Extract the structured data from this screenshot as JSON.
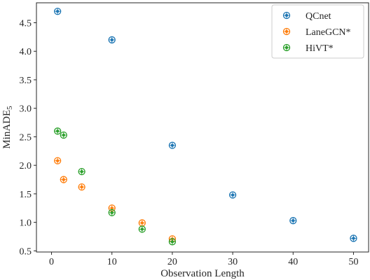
{
  "chart_data": {
    "type": "scatter",
    "xlabel": "Observation Length",
    "ylabel_base": "MinADE",
    "ylabel_sub": "5",
    "xlim": [
      -2.5,
      52.5
    ],
    "ylim": [
      0.48,
      4.85
    ],
    "xticks": [
      0,
      10,
      20,
      30,
      40,
      50
    ],
    "yticks": [
      0.5,
      1.0,
      1.5,
      2.0,
      2.5,
      3.0,
      3.5,
      4.0,
      4.5
    ],
    "xtick_labels": [
      "0",
      "10",
      "20",
      "30",
      "40",
      "50"
    ],
    "ytick_labels": [
      "0.5",
      "1.0",
      "1.5",
      "2.0",
      "2.5",
      "3.0",
      "3.5",
      "4.0",
      "4.5"
    ],
    "legend_position": "top-right",
    "marker": "circle-with-plus",
    "series": [
      {
        "name": "QCnet",
        "color": "#1f77b4",
        "x": [
          1,
          10,
          20,
          30,
          40,
          50
        ],
        "y": [
          4.7,
          4.2,
          2.35,
          1.48,
          1.03,
          0.72
        ]
      },
      {
        "name": "LaneGCN*",
        "color": "#ff7f0e",
        "x": [
          1,
          2,
          5,
          10,
          15,
          20
        ],
        "y": [
          2.08,
          1.75,
          1.62,
          1.25,
          0.99,
          0.71
        ]
      },
      {
        "name": "HiVT*",
        "color": "#2ca02c",
        "x": [
          1,
          2,
          5,
          10,
          15,
          20
        ],
        "y": [
          2.6,
          2.53,
          1.89,
          1.17,
          0.88,
          0.66
        ]
      }
    ]
  }
}
